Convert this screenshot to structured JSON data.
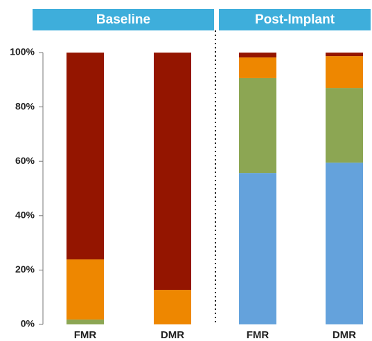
{
  "chart_data": {
    "type": "stacked-bar",
    "groups": [
      "Baseline",
      "Post-Implant"
    ],
    "categories": [
      "FMR",
      "DMR",
      "FMR",
      "DMR"
    ],
    "series": [
      {
        "color": "#64a2dc",
        "values": [
          0,
          0,
          55.7,
          59.5
        ]
      },
      {
        "color": "#8ca653",
        "values": [
          1.8,
          0,
          34.9,
          27.5
        ]
      },
      {
        "color": "#ee8700",
        "values": [
          22.1,
          12.7,
          7.6,
          11.7
        ]
      },
      {
        "color": "#941500",
        "values": [
          76.1,
          87.3,
          1.8,
          1.3
        ]
      }
    ],
    "ylim": [
      0,
      100
    ],
    "yticks": [
      {
        "value": 0,
        "label": "0%"
      },
      {
        "value": 20,
        "label": "20%"
      },
      {
        "value": 40,
        "label": "40%"
      },
      {
        "value": 60,
        "label": "60%"
      },
      {
        "value": 80,
        "label": "80%"
      },
      {
        "value": 100,
        "label": "100%"
      }
    ],
    "group_color": "#3eaedb"
  }
}
